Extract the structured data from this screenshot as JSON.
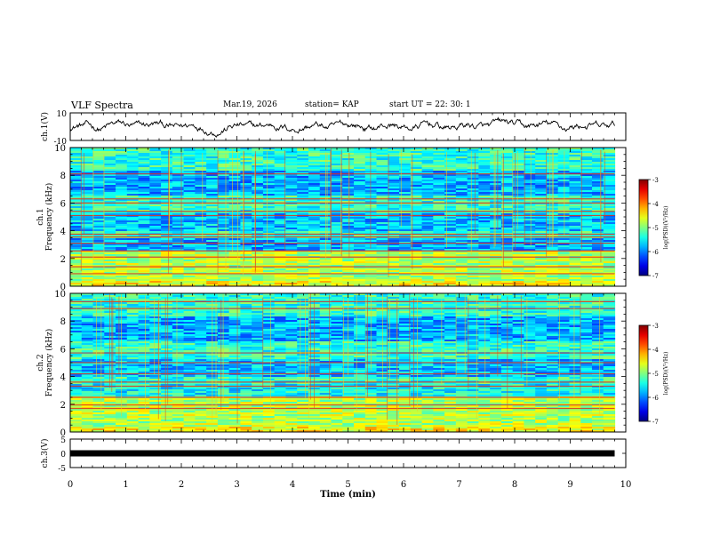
{
  "header": {
    "title": "VLF Spectra",
    "date": "Mar.19, 2026",
    "station": "station= KAP",
    "start_ut": "start  UT  =   22: 30: 1"
  },
  "chart_data": [
    {
      "id": "ch1-waveform",
      "type": "line",
      "ylabel": "ch.1(V)",
      "ylim": [
        -10,
        10
      ],
      "yticks": [
        "10",
        "-10"
      ],
      "xlim": [
        0,
        10
      ]
    },
    {
      "id": "ch1-spectrogram",
      "type": "heatmap",
      "ylabel": "ch.1\nFrequency (kHz)",
      "ylim": [
        0,
        10
      ],
      "yticks": [
        "0",
        "2",
        "4",
        "6",
        "8",
        "10"
      ],
      "xlim": [
        0,
        10
      ],
      "data_end_min": 9.8,
      "colorbar": {
        "label": "log(PSD)(V²/Hz)",
        "range": [
          -7,
          -3
        ],
        "ticks": [
          "-3",
          "-4",
          "-5",
          "-6",
          "-7"
        ]
      }
    },
    {
      "id": "ch2-spectrogram",
      "type": "heatmap",
      "ylabel": "ch.2\nFrequency (kHz)",
      "ylim": [
        0,
        10
      ],
      "yticks": [
        "0",
        "2",
        "4",
        "6",
        "8",
        "10"
      ],
      "xlim": [
        0,
        10
      ],
      "data_end_min": 9.8,
      "colorbar": {
        "label": "log(PSD)(V²/Hz)",
        "range": [
          -7,
          -3
        ],
        "ticks": [
          "-3",
          "-4",
          "-5",
          "-6",
          "-7"
        ]
      }
    },
    {
      "id": "ch3-voltage",
      "type": "line",
      "ylabel": "ch.3(V)",
      "ylim": [
        -5,
        5
      ],
      "yticks": [
        "5",
        "0",
        "-5"
      ],
      "values": {
        "x": [
          0,
          9.8
        ],
        "y": [
          0,
          0
        ]
      },
      "xlim": [
        0,
        10
      ],
      "xlabel": "Time (min)",
      "xticks": [
        "0",
        "1",
        "2",
        "3",
        "4",
        "5",
        "6",
        "7",
        "8",
        "9",
        "10"
      ]
    }
  ]
}
